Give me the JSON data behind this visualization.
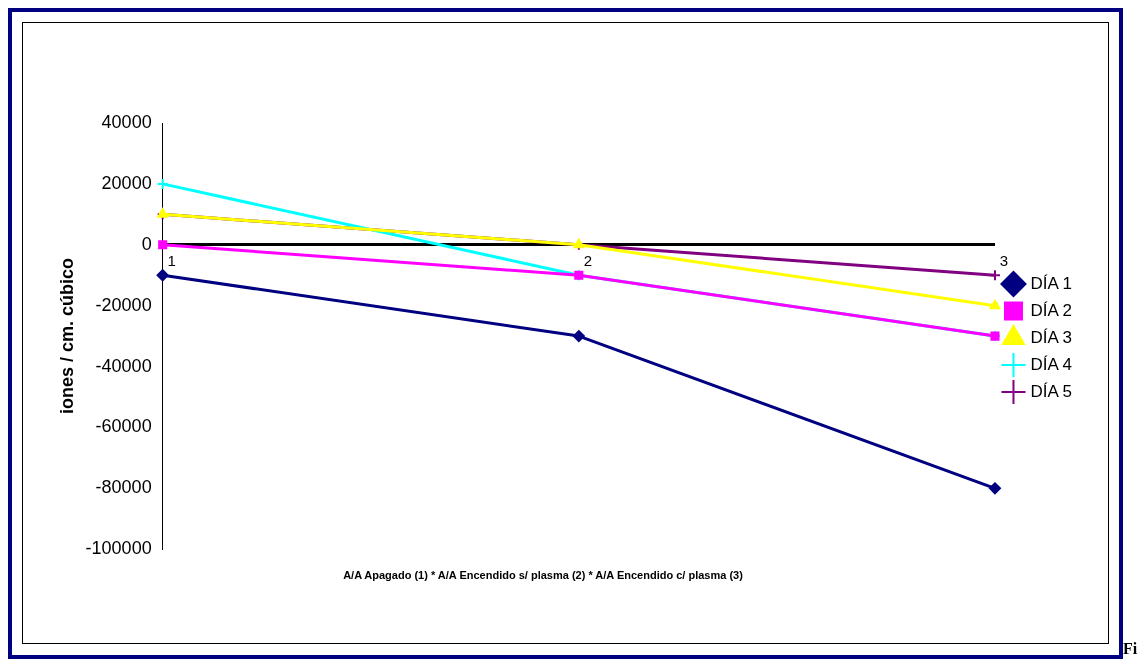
{
  "chart_data": {
    "type": "line",
    "xlabel": "A/A Apagado (1) *  A/A Encendido s/ plasma (2) *  A/A Encendido c/ plasma (3)",
    "ylabel": "iones / cm. cúbico",
    "categories": [
      "1",
      "2",
      "3"
    ],
    "series": [
      {
        "name": "DÍA 1",
        "color": "#000080",
        "marker": "diamond",
        "values": [
          -10000,
          -30000,
          -80000
        ]
      },
      {
        "name": "DÍA 2",
        "color": "#ff00ff",
        "marker": "square",
        "values": [
          0,
          -10000,
          -30000
        ]
      },
      {
        "name": "DÍA 3",
        "color": "#ffff00",
        "marker": "triangle",
        "values": [
          10000,
          0,
          -20000
        ]
      },
      {
        "name": "DÍA 4",
        "color": "#00ffff",
        "marker": "cross",
        "values": [
          20000,
          -10000,
          -30000
        ]
      },
      {
        "name": "DÍA 5",
        "color": "#800080",
        "marker": "cross",
        "values": [
          10000,
          0,
          -10000
        ]
      }
    ],
    "ylim": [
      -100000,
      40000
    ],
    "yticks": [
      -100000,
      -80000,
      -60000,
      -40000,
      -20000,
      0,
      20000,
      40000
    ],
    "grid": false,
    "legend": "right",
    "annotations": [
      "Fi"
    ]
  }
}
